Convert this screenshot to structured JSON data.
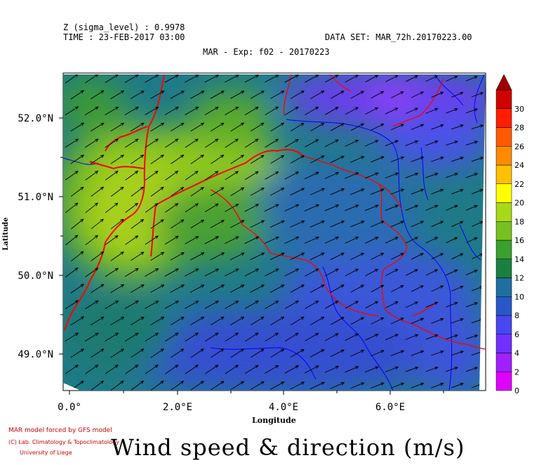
{
  "header": {
    "z_level": "Z (sigma_level) : 0.9978",
    "time": "TIME : 23-FEB-2017 03:00",
    "dataset": "DATA SET: MAR_72h.20170223.00",
    "subtitle": "MAR - Exp: f02 - 20170223"
  },
  "axes": {
    "xlabel": "Longitude",
    "ylabel": "Latitude",
    "x_ticks": [
      "0.0°",
      "2.0°E",
      "4.0°E",
      "6.0°E"
    ],
    "y_ticks": [
      "52.0°N",
      "51.0°N",
      "50.0°N",
      "49.0°N"
    ]
  },
  "colorbar": {
    "ticks": [
      "0",
      "2",
      "4",
      "6",
      "8",
      "10",
      "12",
      "14",
      "16",
      "18",
      "20",
      "22",
      "24",
      "26",
      "28",
      "30"
    ],
    "colors": [
      "#e000ff",
      "#a020ff",
      "#7030ff",
      "#4848f0",
      "#2858c8",
      "#1f6fa0",
      "#1a8040",
      "#3aa030",
      "#78c020",
      "#a8d818",
      "#ffff00",
      "#ffc000",
      "#ff8c00",
      "#ff5a00",
      "#ff1e00",
      "#d00000"
    ],
    "top_arrow_color": "#a00000"
  },
  "credits": {
    "line1": "MAR model forced by GFS model",
    "line2": "(C) Lab. Climatology & Topoclimatology",
    "line3": "University of Liege"
  },
  "title": "Wind speed & direction (m/s)",
  "colors": {
    "land_borders": "#ff0000",
    "rivers": "#0000ff",
    "arrows": "#000000"
  }
}
